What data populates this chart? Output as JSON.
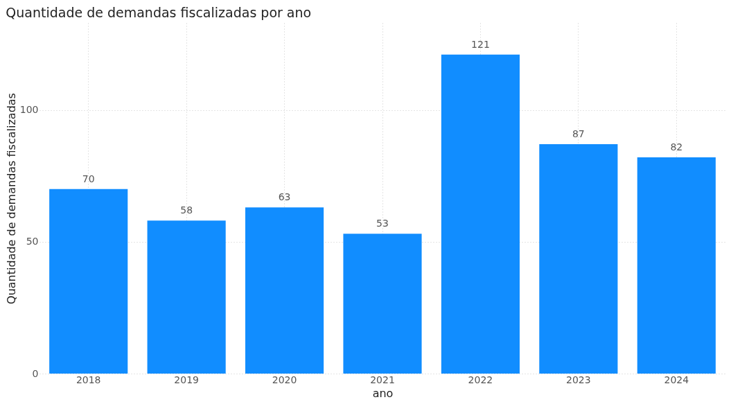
{
  "chart_data": {
    "type": "bar",
    "title": "Quantidade de demandas fiscalizadas por ano",
    "xlabel": "ano",
    "ylabel": "Quantidade de demandas fiscalizadas",
    "categories": [
      "2018",
      "2019",
      "2020",
      "2021",
      "2022",
      "2023",
      "2024"
    ],
    "values": [
      70,
      58,
      63,
      53,
      121,
      87,
      82
    ],
    "color": "#118dff",
    "ylim": [
      0,
      133
    ],
    "yticks": [
      0,
      50,
      100
    ],
    "grid": true,
    "data_labels": true
  }
}
